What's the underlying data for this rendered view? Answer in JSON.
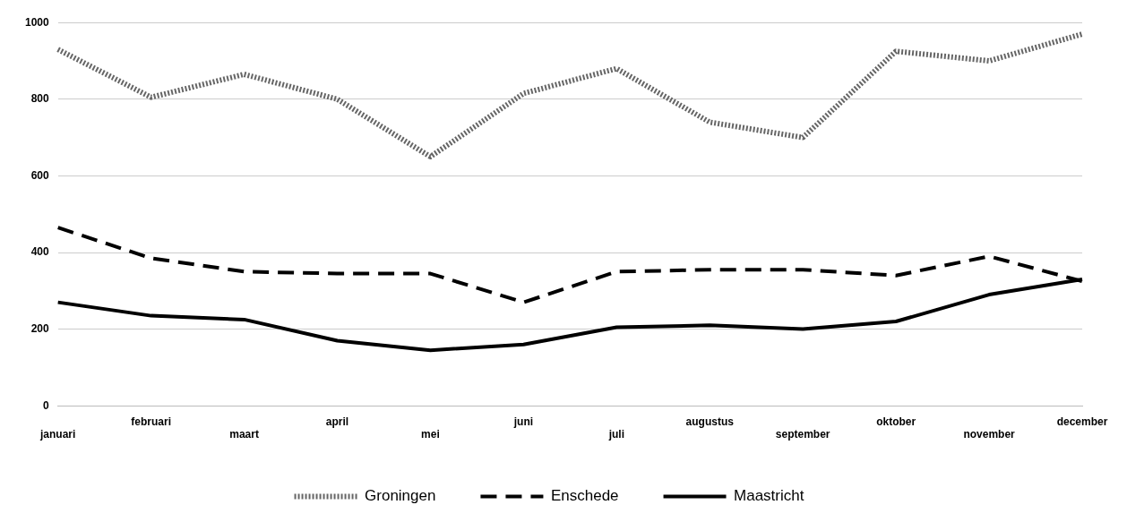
{
  "chart_data": {
    "type": "line",
    "categories": [
      "januari",
      "februari",
      "maart",
      "april",
      "mei",
      "juni",
      "juli",
      "augustus",
      "september",
      "oktober",
      "november",
      "december"
    ],
    "series": [
      {
        "name": "Groningen",
        "color": "#666666",
        "line_style": "dotted",
        "values": [
          930,
          805,
          865,
          800,
          650,
          815,
          880,
          740,
          700,
          925,
          900,
          970
        ]
      },
      {
        "name": "Enschede",
        "color": "#000000",
        "line_style": "dashed",
        "values": [
          465,
          385,
          350,
          345,
          345,
          270,
          350,
          355,
          355,
          340,
          390,
          325
        ]
      },
      {
        "name": "Maastricht",
        "color": "#000000",
        "line_style": "solid",
        "values": [
          270,
          235,
          225,
          170,
          145,
          160,
          205,
          210,
          200,
          220,
          290,
          330
        ]
      }
    ],
    "ylim": [
      0,
      1000
    ],
    "yticks": [
      0,
      200,
      400,
      600,
      800,
      1000
    ],
    "grid": "y",
    "legend": "bottom",
    "marker": "none"
  }
}
